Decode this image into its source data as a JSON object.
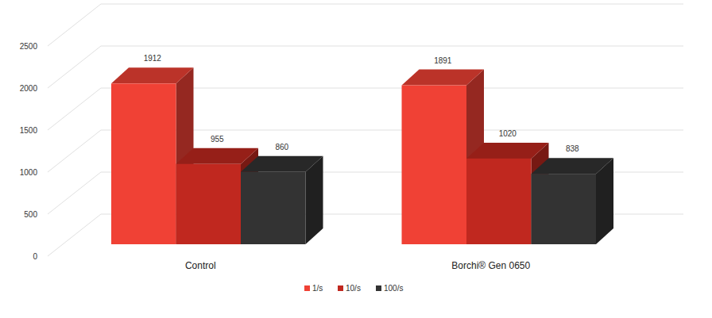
{
  "chart_data": {
    "type": "bar",
    "categories": [
      "Control",
      "Borchi® Gen 0650"
    ],
    "series": [
      {
        "name": "1/s",
        "color": "#f04135",
        "values": [
          1912,
          1891
        ]
      },
      {
        "name": "10/s",
        "color": "#c0281f",
        "values": [
          955,
          1020
        ]
      },
      {
        "name": "100/s",
        "color": "#333333",
        "values": [
          860,
          838
        ]
      }
    ],
    "ylim": [
      0,
      2500
    ],
    "yticks": [
      0,
      500,
      1000,
      1500,
      2000,
      2500
    ],
    "grid": true,
    "data_labels": true,
    "legend": "bottom"
  }
}
